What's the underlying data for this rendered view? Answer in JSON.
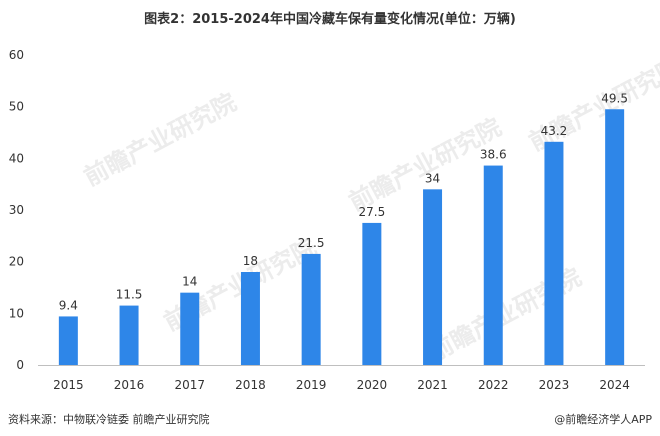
{
  "title": "图表2：2015-2024年中国冷藏车保有量变化情况(单位：万辆)",
  "footer": {
    "source": "资料来源：中物联冷链委 前瞻产业研究院",
    "credit": "@前瞻经济学人APP"
  },
  "watermark": "前瞻产业研究院",
  "chart_data": {
    "type": "bar",
    "categories": [
      "2015",
      "2016",
      "2017",
      "2018",
      "2019",
      "2020",
      "2021",
      "2022",
      "2023",
      "2024"
    ],
    "values": [
      9.4,
      11.5,
      14,
      18,
      21.5,
      27.5,
      34,
      38.6,
      43.2,
      49.5
    ],
    "data_labels": [
      "9.4",
      "11.5",
      "14",
      "18",
      "21.5",
      "27.5",
      "34",
      "38.6",
      "43.2",
      "49.5"
    ],
    "y_ticks": [
      0,
      10,
      20,
      30,
      40,
      50,
      60
    ],
    "ylim": [
      0,
      60
    ],
    "title": "图表2：2015-2024年中国冷藏车保有量变化情况(单位：万辆)",
    "xlabel": "",
    "ylabel": "",
    "grid": false,
    "bar_color": "#2e86e8"
  }
}
